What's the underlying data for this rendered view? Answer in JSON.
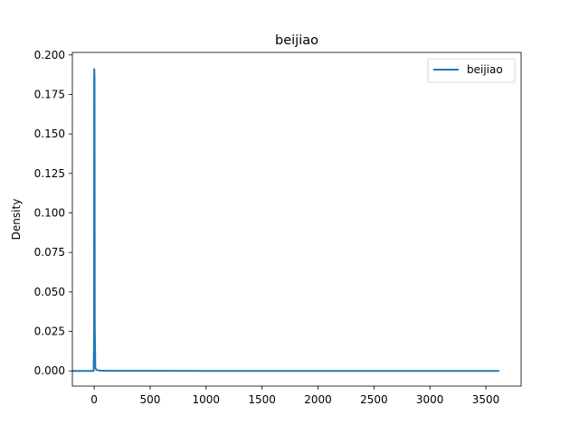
{
  "chart_data": {
    "type": "line",
    "title": "beijiao",
    "xlabel": "",
    "ylabel": "Density",
    "xlim": [
      -195,
      3815
    ],
    "ylim": [
      -0.0096,
      0.2016
    ],
    "xticks": [
      0,
      500,
      1000,
      1500,
      2000,
      2500,
      3000,
      3500
    ],
    "xtick_labels": [
      "0",
      "500",
      "1000",
      "1500",
      "2000",
      "2500",
      "3000",
      "3500"
    ],
    "yticks": [
      0.0,
      0.025,
      0.05,
      0.075,
      0.1,
      0.125,
      0.15,
      0.175,
      0.2
    ],
    "ytick_labels": [
      "0.000",
      "0.025",
      "0.050",
      "0.075",
      "0.100",
      "0.125",
      "0.150",
      "0.175",
      "0.200"
    ],
    "grid": false,
    "legend_position": "top-right",
    "series": [
      {
        "name": "beijiao",
        "color": "#1f77b4",
        "x": [
          -195,
          -5,
          -1,
          0,
          1,
          3,
          5,
          10,
          20,
          50,
          100,
          500,
          1000,
          2000,
          3000,
          3620
        ],
        "y": [
          0.0,
          0.0,
          0.02,
          0.191,
          0.191,
          0.185,
          0.03,
          0.002,
          0.0006,
          0.0002,
          0.0001,
          3e-05,
          1e-05,
          0.0,
          0.0,
          0.0
        ]
      }
    ]
  }
}
